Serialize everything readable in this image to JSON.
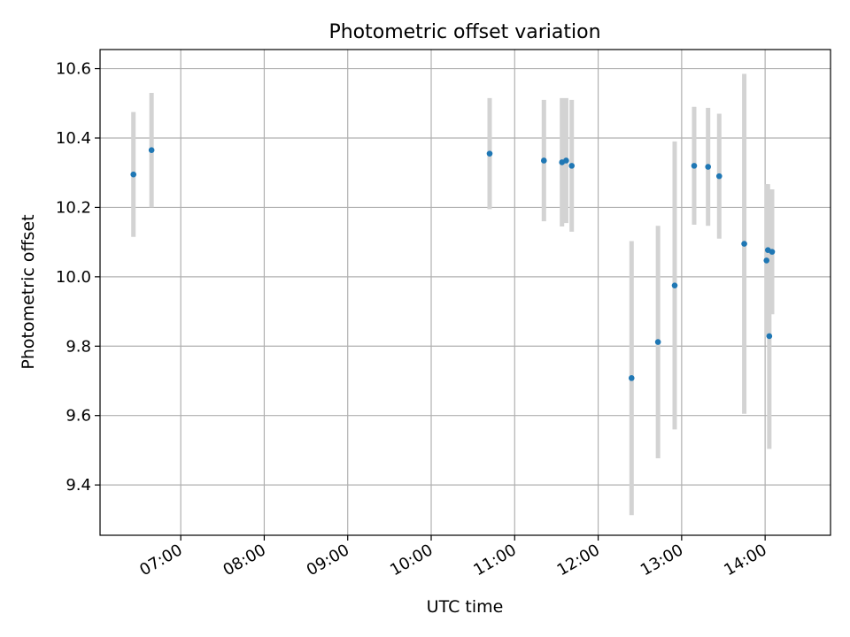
{
  "chart_data": {
    "type": "scatter",
    "title": "Photometric offset variation",
    "xlabel": "UTC time",
    "ylabel": "Photometric offset",
    "x_unit": "UTC time of day (HH:MM)",
    "xlim": [
      "06:02",
      "14:47"
    ],
    "ylim": [
      9.255,
      10.655
    ],
    "x_ticks": [
      "07:00",
      "08:00",
      "09:00",
      "10:00",
      "11:00",
      "12:00",
      "13:00",
      "14:00"
    ],
    "y_ticks": [
      9.4,
      9.6,
      9.8,
      10.0,
      10.2,
      10.4,
      10.6
    ],
    "y_tick_labels": [
      "9.4",
      "9.6",
      "9.8",
      "10.0",
      "10.2",
      "10.4",
      "10.6"
    ],
    "grid": true,
    "colors": {
      "points": "#1f77b4",
      "errorbars": "#d3d3d3",
      "grid": "#b0b0b0"
    },
    "series": [
      {
        "points": [
          {
            "x": "06:26",
            "y": 10.295,
            "err": 0.18
          },
          {
            "x": "06:39",
            "y": 10.365,
            "err": 0.165
          },
          {
            "x": "10:42",
            "y": 10.355,
            "err": 0.16
          },
          {
            "x": "11:21",
            "y": 10.335,
            "err": 0.175
          },
          {
            "x": "11:34",
            "y": 10.33,
            "err": 0.185
          },
          {
            "x": "11:37",
            "y": 10.335,
            "err": 0.18
          },
          {
            "x": "11:41",
            "y": 10.32,
            "err": 0.19
          },
          {
            "x": "12:24",
            "y": 9.708,
            "err": 0.395
          },
          {
            "x": "12:43",
            "y": 9.812,
            "err": 0.335
          },
          {
            "x": "12:55",
            "y": 9.975,
            "err": 0.415
          },
          {
            "x": "13:09",
            "y": 10.32,
            "err": 0.17
          },
          {
            "x": "13:19",
            "y": 10.317,
            "err": 0.17
          },
          {
            "x": "13:27",
            "y": 10.29,
            "err": 0.18
          },
          {
            "x": "13:45",
            "y": 10.095,
            "err": 0.49
          },
          {
            "x": "14:01",
            "y": 10.047,
            "err": 0.22
          },
          {
            "x": "14:02",
            "y": 10.077,
            "err": 0.19
          },
          {
            "x": "14:03",
            "y": 9.829,
            "err": 0.325
          },
          {
            "x": "14:05",
            "y": 10.072,
            "err": 0.18
          }
        ]
      }
    ]
  }
}
